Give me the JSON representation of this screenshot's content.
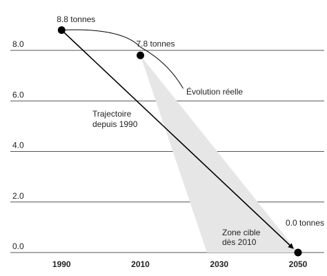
{
  "chart_data": {
    "type": "line",
    "x": [
      1990,
      2010,
      2050
    ],
    "values": [
      8.8,
      7.8,
      0.0
    ],
    "value_labels": [
      "8.8 tonnes",
      "7.8 tonnes",
      "0.0 tonnes"
    ],
    "xlim": [
      1977,
      2057
    ],
    "xticks": [
      1990,
      2010,
      2030,
      2050
    ],
    "ylim": [
      0,
      9.5
    ],
    "yticks": [
      {
        "value": 0,
        "label": "0.0"
      },
      {
        "value": 2,
        "label": "2.0"
      },
      {
        "value": 4,
        "label": "4.0"
      },
      {
        "value": 6,
        "label": "6.0"
      },
      {
        "value": 8,
        "label": "8.0"
      }
    ],
    "grid": true,
    "color": "#000000",
    "actual_label": "Évolution réelle",
    "trajectory_label": [
      "Trajectoire",
      "depuis 1990"
    ],
    "target_label": [
      "Zone cible",
      "dès 2010"
    ]
  }
}
